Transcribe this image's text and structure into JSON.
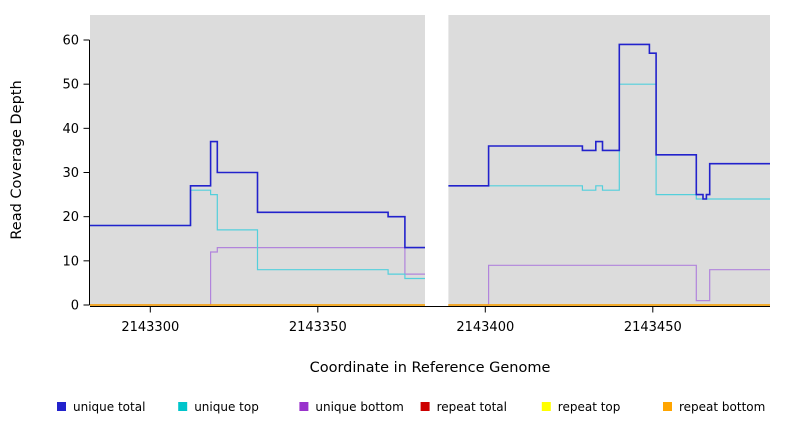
{
  "figure": {
    "background": "#FFFFFF",
    "plot_background": "#DCDCDC"
  },
  "chart_data": {
    "type": "line",
    "line_style": "step",
    "title": "",
    "xlabel": "Coordinate in Reference Genome",
    "ylabel": "Read Coverage Depth",
    "xlim": [
      2143282,
      2143485
    ],
    "ylim": [
      0,
      62
    ],
    "x_ticks": [
      2143300,
      2143350,
      2143400,
      2143450
    ],
    "y_ticks": [
      0,
      10,
      20,
      30,
      40,
      50,
      60
    ],
    "grid": false,
    "legend_position": "bottom",
    "masked_region": {
      "x_start": 2143382,
      "x_end": 2143389
    },
    "series": [
      {
        "name": "unique bottom",
        "color": "#B184DC",
        "width": 1.2,
        "steps": [
          [
            2143282,
            0
          ],
          [
            2143318,
            12
          ],
          [
            2143320,
            13
          ],
          [
            2143376,
            7
          ],
          [
            2143389,
            0
          ],
          [
            2143401,
            9
          ],
          [
            2143463,
            1
          ],
          [
            2143467,
            8
          ]
        ]
      },
      {
        "name": "unique top",
        "color": "#53CFDB",
        "width": 1.2,
        "steps": [
          [
            2143282,
            18
          ],
          [
            2143312,
            26
          ],
          [
            2143318,
            25
          ],
          [
            2143320,
            17
          ],
          [
            2143332,
            8
          ],
          [
            2143371,
            7
          ],
          [
            2143376,
            6
          ],
          [
            2143389,
            27
          ],
          [
            2143429,
            26
          ],
          [
            2143433,
            27
          ],
          [
            2143435,
            26
          ],
          [
            2143440,
            50
          ],
          [
            2143451,
            25
          ],
          [
            2143463,
            24
          ]
        ]
      },
      {
        "name": "unique total",
        "color": "#2222CC",
        "width": 1.6,
        "steps": [
          [
            2143282,
            18
          ],
          [
            2143312,
            27
          ],
          [
            2143318,
            37
          ],
          [
            2143320,
            30
          ],
          [
            2143332,
            21
          ],
          [
            2143371,
            20
          ],
          [
            2143376,
            13
          ],
          [
            2143389,
            27
          ],
          [
            2143401,
            36
          ],
          [
            2143429,
            35
          ],
          [
            2143433,
            37
          ],
          [
            2143435,
            35
          ],
          [
            2143440,
            59
          ],
          [
            2143449,
            57
          ],
          [
            2143451,
            34
          ],
          [
            2143463,
            25
          ],
          [
            2143465,
            24
          ],
          [
            2143466,
            25
          ],
          [
            2143467,
            32
          ]
        ]
      },
      {
        "name": "repeat total",
        "color": "#CC0000",
        "width": 1.2,
        "steps": [
          [
            2143282,
            0
          ]
        ]
      },
      {
        "name": "repeat top",
        "color": "#FFFF00",
        "width": 1.2,
        "steps": [
          [
            2143282,
            0
          ]
        ]
      },
      {
        "name": "repeat bottom",
        "color": "#FFA500",
        "width": 1.2,
        "steps": [
          [
            2143282,
            0
          ]
        ]
      }
    ]
  },
  "legend": {
    "items": [
      {
        "label": "unique total",
        "color": "#2222CC"
      },
      {
        "label": "unique top",
        "color": "#00C5CB"
      },
      {
        "label": "unique bottom",
        "color": "#9933CC"
      },
      {
        "label": "repeat total",
        "color": "#CC0000"
      },
      {
        "label": "repeat top",
        "color": "#FFFF00"
      },
      {
        "label": "repeat bottom",
        "color": "#FFA500"
      }
    ]
  }
}
